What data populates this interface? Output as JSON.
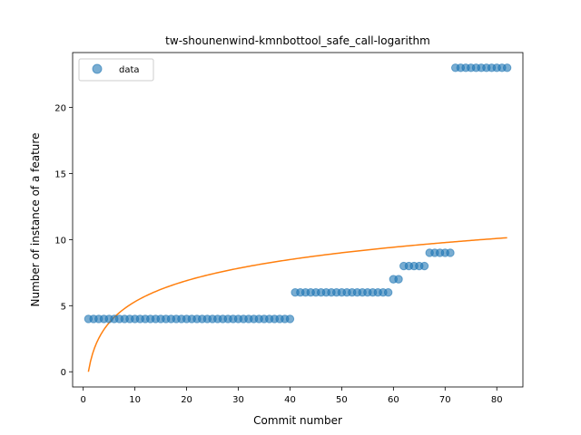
{
  "chart_data": {
    "type": "scatter",
    "title": "tw-shounenwind-kmnbottool_safe_call-logarithm",
    "xlabel": "Commit number",
    "ylabel": "Number of instance of a feature",
    "xlim": [
      -2.05,
      85.05
    ],
    "ylim": [
      -1.15,
      24.15
    ],
    "xticks": [
      0,
      10,
      20,
      30,
      40,
      50,
      60,
      70,
      80
    ],
    "yticks": [
      0,
      5,
      10,
      15,
      20
    ],
    "grid": false,
    "legend_position": "top-left",
    "series": [
      {
        "name": "data",
        "kind": "scatter",
        "color": "#1f77b4",
        "alpha": 0.6,
        "x": [
          1,
          2,
          3,
          4,
          5,
          6,
          7,
          8,
          9,
          10,
          11,
          12,
          13,
          14,
          15,
          16,
          17,
          18,
          19,
          20,
          21,
          22,
          23,
          24,
          25,
          26,
          27,
          28,
          29,
          30,
          31,
          32,
          33,
          34,
          35,
          36,
          37,
          38,
          39,
          40,
          41,
          42,
          43,
          44,
          45,
          46,
          47,
          48,
          49,
          50,
          51,
          52,
          53,
          54,
          55,
          56,
          57,
          58,
          59,
          60,
          61,
          62,
          63,
          64,
          65,
          66,
          67,
          68,
          69,
          70,
          71,
          72,
          73,
          74,
          75,
          76,
          77,
          78,
          79,
          80,
          81,
          82
        ],
        "y": [
          4,
          4,
          4,
          4,
          4,
          4,
          4,
          4,
          4,
          4,
          4,
          4,
          4,
          4,
          4,
          4,
          4,
          4,
          4,
          4,
          4,
          4,
          4,
          4,
          4,
          4,
          4,
          4,
          4,
          4,
          4,
          4,
          4,
          4,
          4,
          4,
          4,
          4,
          4,
          4,
          6,
          6,
          6,
          6,
          6,
          6,
          6,
          6,
          6,
          6,
          6,
          6,
          6,
          6,
          6,
          6,
          6,
          6,
          6,
          7,
          7,
          8,
          8,
          8,
          8,
          8,
          9,
          9,
          9,
          9,
          9,
          23,
          23,
          23,
          23,
          23,
          23,
          23,
          23,
          23,
          23,
          23
        ]
      },
      {
        "kind": "line",
        "color": "#ff7f0e",
        "formula": "y = 2.3 * ln(x)",
        "x": [
          1,
          82
        ],
        "y": [
          0,
          10.14
        ]
      }
    ]
  }
}
